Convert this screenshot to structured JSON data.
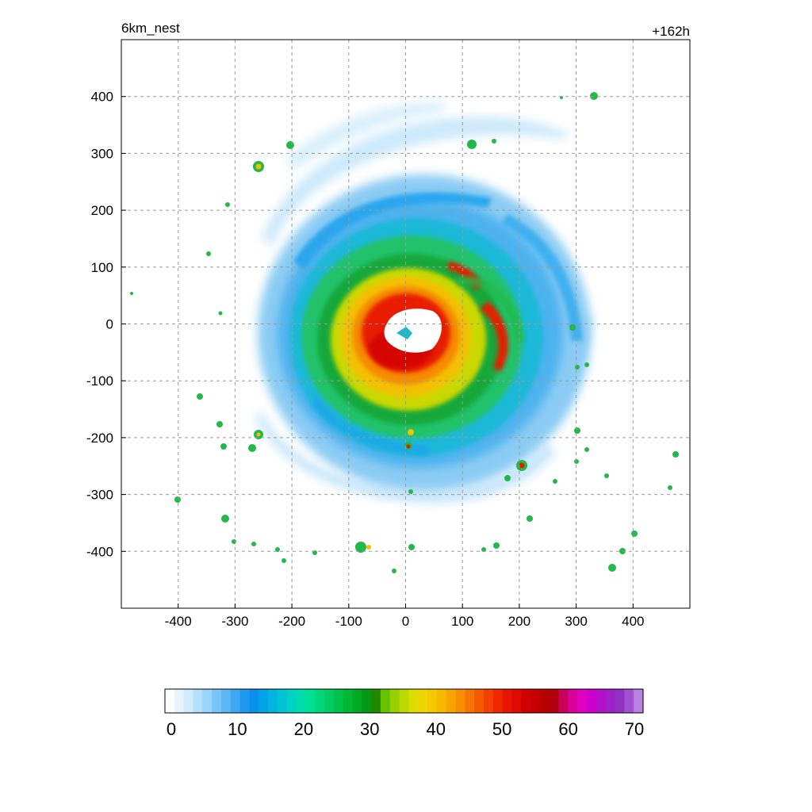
{
  "chart_data": {
    "type": "heatmap",
    "title_left": "6km_nest",
    "title_right": "+162h",
    "xlabel": "",
    "ylabel": "",
    "xlim": [
      -500,
      500
    ],
    "ylim": [
      -500,
      500
    ],
    "x_ticks": [
      -400,
      -300,
      -200,
      -100,
      0,
      100,
      200,
      300,
      400
    ],
    "y_ticks": [
      400,
      300,
      200,
      100,
      0,
      -100,
      -200,
      -300,
      -400
    ],
    "grid": true,
    "colorbar": {
      "min": 0,
      "max": 70,
      "tick_labels": [
        0,
        10,
        20,
        30,
        40,
        50,
        60,
        70
      ],
      "colors": [
        "#ffffff",
        "#e8f4ff",
        "#d0ebff",
        "#b4e0fb",
        "#96d4f9",
        "#78c6f7",
        "#5ab8f5",
        "#3ca9f2",
        "#1e9af0",
        "#0891ec",
        "#00a2e8",
        "#00b3e0",
        "#00c4d6",
        "#00d2c3",
        "#00ddac",
        "#00e092",
        "#00d67a",
        "#00cc62",
        "#00c24a",
        "#00b834",
        "#00aa22",
        "#009a14",
        "#228800",
        "#66c200",
        "#99d000",
        "#bbd800",
        "#dddc00",
        "#eed600",
        "#f5c800",
        "#f8b800",
        "#f8a400",
        "#f88e00",
        "#f67400",
        "#f45a00",
        "#f44000",
        "#f02800",
        "#e81400",
        "#de0a00",
        "#d00000",
        "#c40000",
        "#b80000",
        "#b00010",
        "#c8005a",
        "#dc009a",
        "#e000c4",
        "#cc00cc",
        "#b410cc",
        "#a020c8",
        "#9030c0",
        "#a050d0",
        "#b880e0"
      ]
    },
    "features": {
      "eye_center": [
        20,
        0
      ],
      "inner_core_peak": "red ring",
      "rainbands": [
        "green/blue spirals",
        "outer light-blue arcs"
      ]
    }
  }
}
